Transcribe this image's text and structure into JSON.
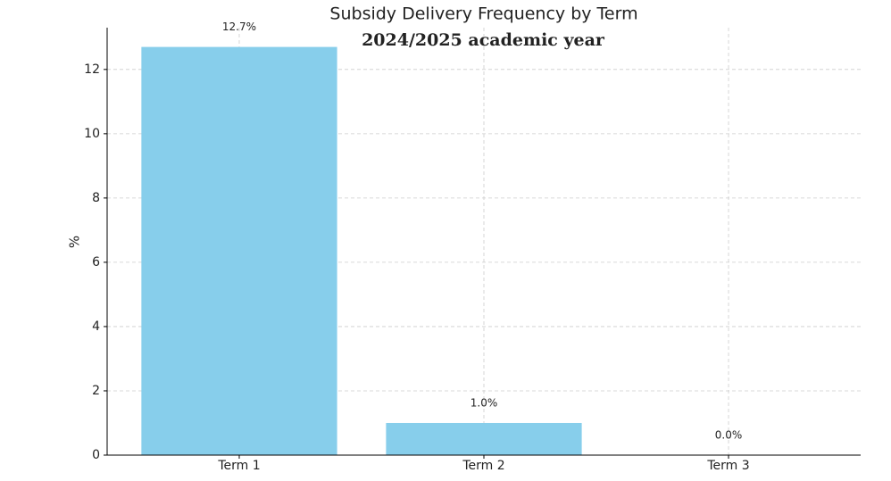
{
  "chart_data": {
    "type": "bar",
    "title": "Subsidy Delivery Frequency by Term",
    "subtitle": "2024/2025 academic year",
    "y_label": "%",
    "categories": [
      "Term 1",
      "Term 2",
      "Term 3"
    ],
    "values": [
      12.7,
      1.0,
      0.0
    ],
    "value_labels": [
      "12.7%",
      "1.0%",
      "0.0%"
    ],
    "color": "#87ceeb",
    "ylim": [
      0,
      13.3
    ],
    "yticks": [
      0,
      2,
      4,
      6,
      8,
      10,
      12
    ],
    "grid": true
  }
}
